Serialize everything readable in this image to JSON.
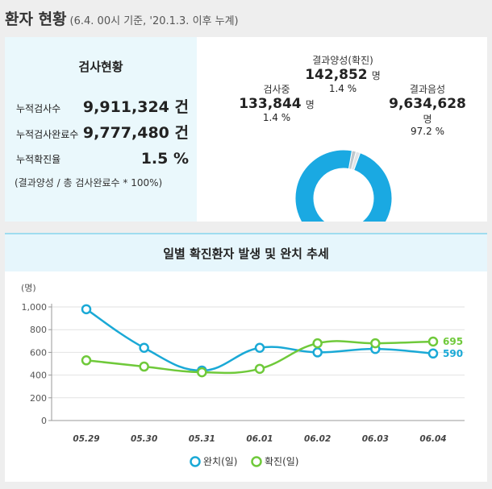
{
  "header": {
    "title": "환자 현황",
    "subtitle": "(6.4. 00시 기준, '20.1.3. 이후 누계)"
  },
  "test_status": {
    "title": "검사현황",
    "rows": [
      {
        "label": "누적검사수",
        "value": "9,911,324 건"
      },
      {
        "label": "누적검사완료수",
        "value": "9,777,480 건"
      },
      {
        "label": "누적확진율",
        "value": "1.5 %"
      }
    ],
    "note": "(결과양성 / 총 검사완료수 * 100%)"
  },
  "donut": {
    "positive": {
      "name": "결과양성(확진)",
      "num": "142,852",
      "unit": "명",
      "pct": "1.4 %"
    },
    "testing": {
      "name": "검사중",
      "num": "133,844",
      "unit": "명",
      "pct": "1.4 %"
    },
    "negative": {
      "name": "결과음성",
      "num": "9,634,628",
      "unit": "명",
      "pct": "97.2 %"
    },
    "shares": {
      "negative": 97.2,
      "positive": 1.4,
      "testing": 1.4
    },
    "colors": {
      "negative": "#1aa9e2",
      "positive": "#bfc7cc",
      "testing": "#dfe3e6"
    }
  },
  "chart_data": {
    "type": "line",
    "title": "일별 확진환자 발생 및 완치 추세",
    "ylabel": "(명)",
    "categories": [
      "05.29",
      "05.30",
      "05.31",
      "06.01",
      "06.02",
      "06.03",
      "06.04"
    ],
    "y_ticks": [
      "0",
      "200",
      "400",
      "600",
      "800",
      "1,000"
    ],
    "ylim": [
      0,
      1000
    ],
    "series": [
      {
        "name": "완치(일)",
        "values": [
          980,
          640,
          440,
          640,
          600,
          630,
          590
        ],
        "color": "#1aa9d6",
        "end_label": "590"
      },
      {
        "name": "확진(일)",
        "values": [
          530,
          475,
          425,
          455,
          680,
          680,
          695
        ],
        "color": "#6fc93a",
        "end_label": "695"
      }
    ],
    "grid": true,
    "legend": "bottom-center"
  }
}
